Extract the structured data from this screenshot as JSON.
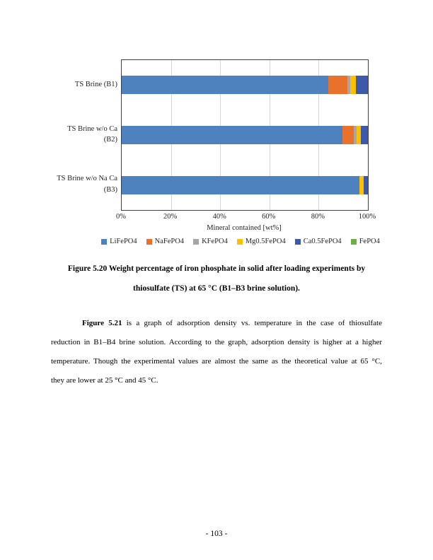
{
  "chart_data": {
    "type": "bar",
    "orientation": "horizontal",
    "stacked": true,
    "title": "",
    "xlabel": "Mineral contained [wt%]",
    "ylabel": "",
    "xlim": [
      0,
      100
    ],
    "x_ticks": [
      "0%",
      "20%",
      "40%",
      "60%",
      "80%",
      "100%"
    ],
    "grid": true,
    "legend_position": "bottom",
    "categories": [
      "TS Brine (B1)",
      "TS Brine w/o Ca\n(B2)",
      "TS Brine w/o Na Ca\n(B3)"
    ],
    "series": [
      {
        "name": "LiFePO4",
        "color": "#4E82BE",
        "values": [
          84.0,
          89.7,
          96.6
        ]
      },
      {
        "name": "NaFePO4",
        "color": "#E8722B",
        "values": [
          7.6,
          4.6,
          0
        ]
      },
      {
        "name": "KFePO4",
        "color": "#A6A6A6",
        "values": [
          1.2,
          1.0,
          0
        ]
      },
      {
        "name": "Mg0.5FePO4",
        "color": "#FFC000",
        "values": [
          2.4,
          1.7,
          1.6
        ]
      },
      {
        "name": "Ca0.5FePO4",
        "color": "#3C5AA9",
        "values": [
          4.8,
          3.0,
          1.8
        ]
      },
      {
        "name": "FePO4",
        "color": "#70AD47",
        "values": [
          0,
          0,
          0
        ]
      }
    ],
    "gridline_color": "#D9D9D9",
    "border_color": "#404040"
  },
  "figure_caption": {
    "line1": "Figure 5.20 Weight percentage of iron phosphate in solid after loading experiments by",
    "line2": "thiosulfate (TS) at 65 °C (B1–B3 brine solution)."
  },
  "paragraph": {
    "lead": "Figure 5.21",
    "line1_rest": " is a graph of adsorption density vs. temperature in the case of thiosulfate",
    "line2": "reduction in B1–B4 brine solution. According to the graph, adsorption density is higher at a higher",
    "line3": "temperature. Though the experimental values are almost the same as the theoretical value at 65 °C,",
    "line4": "they are lower at 25 °C and 45 °C."
  },
  "page": {
    "number_label": "- 103 -"
  }
}
